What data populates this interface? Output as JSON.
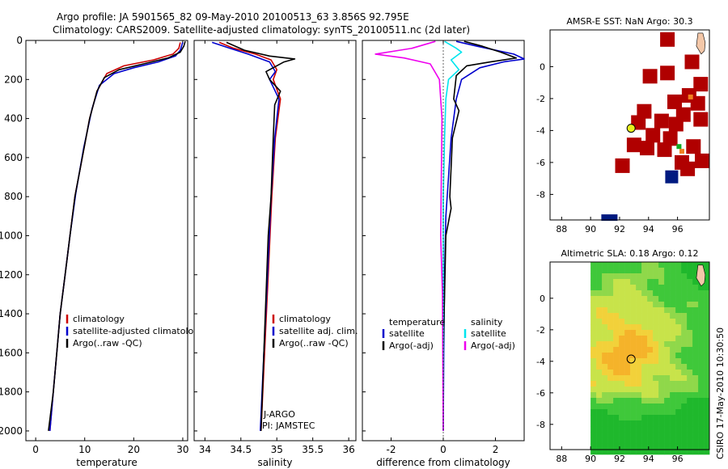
{
  "header": {
    "line1": "Argo profile: JA 5901565_82 09-May-2010 20100513_63 3.856S 92.795E",
    "line2": "Climatology: CARS2009. Satellite-adjusted climatology: synTS_20100511.nc (2d later)"
  },
  "side_label": "CSIRO 17-May-2010 10:30:50",
  "colors": {
    "climatology": "#cc0000",
    "satellite": "#0000cc",
    "argo": "#000000",
    "sat_diff": "#00e5ee",
    "argo_diff": "#ee00ee"
  },
  "chart_data": [
    {
      "type": "line",
      "title": "",
      "xlabel": "temperature",
      "ylabel": "",
      "xlim": [
        -2,
        31
      ],
      "ylim": [
        2050,
        0
      ],
      "xticks": [
        0,
        10,
        20,
        30
      ],
      "yticks": [
        0,
        200,
        400,
        600,
        800,
        1000,
        1200,
        1400,
        1600,
        1800,
        2000
      ],
      "legend": [
        "climatology",
        "satellite-adjusted climatology",
        "Argo(..raw -QC)"
      ],
      "series": [
        {
          "name": "climatology",
          "color": "#cc0000",
          "points": [
            [
              29.5,
              10
            ],
            [
              29.2,
              40
            ],
            [
              28,
              70
            ],
            [
              24,
              100
            ],
            [
              18,
              130
            ],
            [
              14.5,
              170
            ],
            [
              12.5,
              260
            ],
            [
              11,
              400
            ],
            [
              9.5,
              600
            ],
            [
              8,
              800
            ],
            [
              7,
              1000
            ],
            [
              6,
              1200
            ],
            [
              5,
              1400
            ],
            [
              4.3,
              1600
            ],
            [
              3.6,
              1800
            ],
            [
              2.9,
              2000
            ]
          ]
        },
        {
          "name": "satellite-adjusted climatology",
          "color": "#0000cc",
          "points": [
            [
              30,
              10
            ],
            [
              29.5,
              50
            ],
            [
              28.5,
              80
            ],
            [
              25,
              110
            ],
            [
              20,
              140
            ],
            [
              16,
              170
            ],
            [
              13,
              230
            ],
            [
              11.5,
              350
            ],
            [
              9.8,
              550
            ],
            [
              8.2,
              780
            ],
            [
              7,
              1000
            ],
            [
              6,
              1200
            ],
            [
              5,
              1400
            ],
            [
              4.3,
              1600
            ],
            [
              3.6,
              1800
            ],
            [
              2.9,
              2000
            ]
          ]
        },
        {
          "name": "Argo(..raw -QC)",
          "color": "#000000",
          "points": [
            [
              30.5,
              5
            ],
            [
              30.2,
              30
            ],
            [
              29.5,
              60
            ],
            [
              27,
              90
            ],
            [
              22,
              120
            ],
            [
              17,
              150
            ],
            [
              14,
              190
            ],
            [
              12.5,
              260
            ],
            [
              11,
              400
            ],
            [
              9.5,
              600
            ],
            [
              8,
              800
            ],
            [
              7,
              1000
            ],
            [
              6,
              1200
            ],
            [
              5,
              1400
            ],
            [
              4.3,
              1600
            ],
            [
              3.6,
              1800
            ],
            [
              2.6,
              2000
            ]
          ]
        }
      ]
    },
    {
      "type": "line",
      "title": "",
      "xlabel": "salinity",
      "ylabel": "",
      "xlim": [
        33.85,
        36.1
      ],
      "ylim": [
        2050,
        0
      ],
      "xticks": [
        34,
        34.5,
        35,
        35.5,
        36
      ],
      "legend": [
        "climatology",
        "satellite adj. clim.",
        "Argo(..raw -QC)"
      ],
      "annotations": [
        "J-ARGO",
        "PI: JAMSTEC"
      ],
      "series": [
        {
          "name": "climatology",
          "color": "#cc0000",
          "points": [
            [
              34.2,
              10
            ],
            [
              34.4,
              40
            ],
            [
              34.7,
              70
            ],
            [
              34.92,
              100
            ],
            [
              35.0,
              150
            ],
            [
              34.95,
              200
            ],
            [
              35.05,
              300
            ],
            [
              34.98,
              500
            ],
            [
              34.93,
              800
            ],
            [
              34.88,
              1200
            ],
            [
              34.83,
              1600
            ],
            [
              34.78,
              2000
            ]
          ]
        },
        {
          "name": "satellite adj. clim.",
          "color": "#0000cc",
          "points": [
            [
              34.1,
              10
            ],
            [
              34.35,
              40
            ],
            [
              34.6,
              70
            ],
            [
              34.9,
              110
            ],
            [
              34.98,
              160
            ],
            [
              34.9,
              200
            ],
            [
              35.03,
              300
            ],
            [
              34.97,
              500
            ],
            [
              34.92,
              800
            ],
            [
              34.87,
              1200
            ],
            [
              34.82,
              1600
            ],
            [
              34.77,
              2000
            ]
          ]
        },
        {
          "name": "Argo(..raw -QC)",
          "color": "#000000",
          "points": [
            [
              34.3,
              10
            ],
            [
              34.55,
              50
            ],
            [
              34.9,
              80
            ],
            [
              35.25,
              95
            ],
            [
              35.1,
              110
            ],
            [
              34.85,
              160
            ],
            [
              34.9,
              200
            ],
            [
              35.05,
              260
            ],
            [
              34.97,
              330
            ],
            [
              34.95,
              500
            ],
            [
              34.92,
              800
            ],
            [
              34.88,
              1000
            ],
            [
              34.86,
              1200
            ],
            [
              34.82,
              1600
            ],
            [
              34.78,
              2000
            ]
          ]
        }
      ]
    },
    {
      "type": "line",
      "title": "",
      "xlabel": "difference from climatology",
      "ylabel": "",
      "xlim": [
        -3.1,
        3.1
      ],
      "ylim": [
        2050,
        0
      ],
      "xticks": [
        -2,
        0,
        2
      ],
      "legend_left_title": "temperature",
      "legend_right_title": "salinity",
      "legend_left": [
        "satellite",
        "Argo(-adj)"
      ],
      "legend_right": [
        "satellite",
        "Argo(-adj)"
      ],
      "series": [
        {
          "name": "temperature satellite",
          "color": "#0000cc",
          "points": [
            [
              0.5,
              5
            ],
            [
              1.3,
              30
            ],
            [
              2.7,
              70
            ],
            [
              3.1,
              95
            ],
            [
              2.3,
              110
            ],
            [
              1.4,
              140
            ],
            [
              0.7,
              200
            ],
            [
              0.5,
              300
            ],
            [
              0.3,
              500
            ],
            [
              0.2,
              700
            ],
            [
              0.1,
              900
            ],
            [
              0.05,
              1200
            ],
            [
              0.02,
              1600
            ],
            [
              0.0,
              2000
            ]
          ]
        },
        {
          "name": "temperature Argo(-adj)",
          "color": "#000000",
          "points": [
            [
              0.8,
              5
            ],
            [
              1.5,
              30
            ],
            [
              2.2,
              60
            ],
            [
              2.8,
              90
            ],
            [
              1.8,
              110
            ],
            [
              0.9,
              130
            ],
            [
              0.5,
              180
            ],
            [
              0.4,
              300
            ],
            [
              0.6,
              360
            ],
            [
              0.35,
              500
            ],
            [
              0.25,
              800
            ],
            [
              0.3,
              860
            ],
            [
              0.1,
              1000
            ],
            [
              0.05,
              1300
            ],
            [
              0.0,
              1600
            ],
            [
              0.0,
              2000
            ]
          ]
        },
        {
          "name": "salinity satellite",
          "color": "#00e5ee",
          "points": [
            [
              0.05,
              5
            ],
            [
              0.5,
              40
            ],
            [
              0.7,
              60
            ],
            [
              0.3,
              100
            ],
            [
              0.6,
              150
            ],
            [
              0.2,
              200
            ],
            [
              0.1,
              300
            ],
            [
              0.05,
              500
            ],
            [
              0.0,
              800
            ],
            [
              0.0,
              1200
            ],
            [
              0.0,
              2000
            ]
          ]
        },
        {
          "name": "salinity Argo(-adj)",
          "color": "#ee00ee",
          "points": [
            [
              -0.3,
              5
            ],
            [
              -1.2,
              40
            ],
            [
              -2.6,
              70
            ],
            [
              -1.5,
              90
            ],
            [
              -0.5,
              120
            ],
            [
              -0.15,
              200
            ],
            [
              -0.05,
              400
            ],
            [
              -0.1,
              1000
            ],
            [
              -0.03,
              1300
            ],
            [
              0.0,
              2000
            ]
          ]
        }
      ]
    },
    {
      "type": "heatmap",
      "title": "AMSR-E SST: NaN Argo: 30.3",
      "xticks": [
        88,
        90,
        92,
        94,
        96
      ],
      "yticks": [
        0,
        -2,
        -4,
        -6,
        -8
      ],
      "xlim": [
        87.2,
        98.2
      ],
      "ylim": [
        -9.6,
        2.3
      ],
      "argo_position": [
        92.795,
        -3.856
      ]
    },
    {
      "type": "heatmap",
      "title": "Altimetric SLA: 0.18 Argo: 0.12",
      "xticks": [
        88,
        90,
        92,
        94,
        96
      ],
      "yticks": [
        0,
        -2,
        -4,
        -6,
        -8
      ],
      "xlim": [
        87.2,
        98.2
      ],
      "ylim": [
        -9.6,
        2.3
      ],
      "argo_position": [
        92.795,
        -3.856
      ]
    }
  ]
}
